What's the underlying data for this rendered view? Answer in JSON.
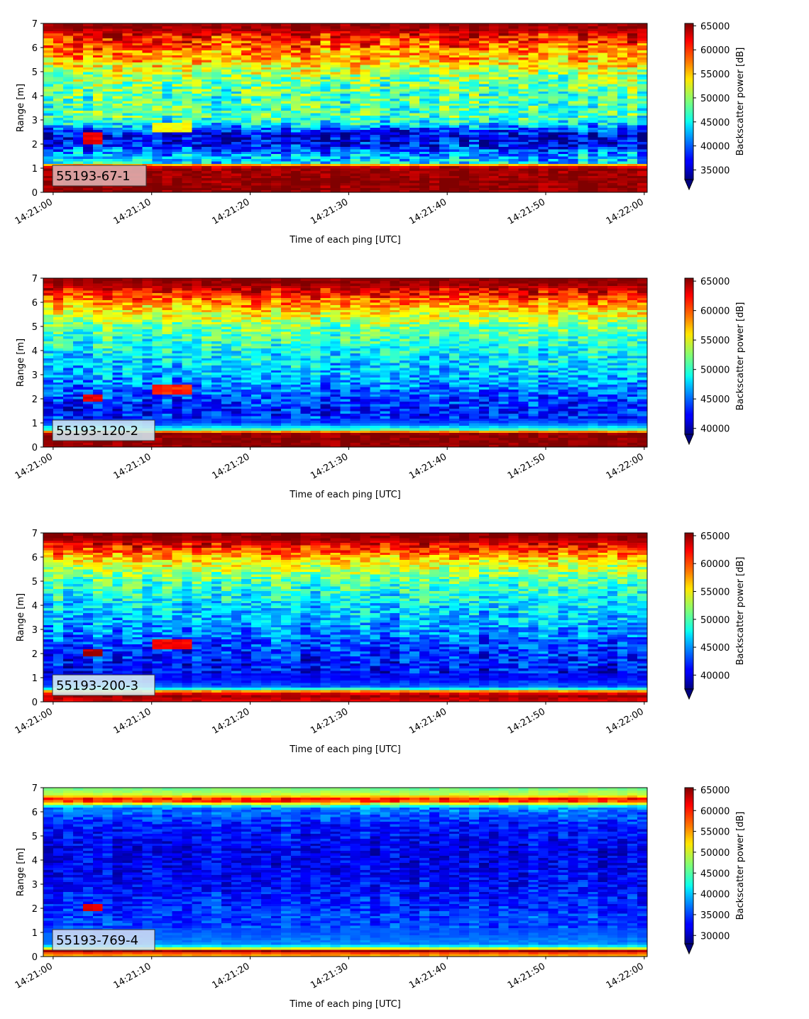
{
  "chart_data": [
    {
      "type": "heatmap",
      "label": "55193-67-1",
      "xlabel": "Time of each ping [UTC]",
      "ylabel": "Range [m]",
      "ylim": [
        0,
        7
      ],
      "y_ticks": [
        "0",
        "1",
        "2",
        "3",
        "4",
        "5",
        "6",
        "7"
      ],
      "x_ticks": [
        "14:21:00",
        "14:21:10",
        "14:21:20",
        "14:21:30",
        "14:21:40",
        "14:21:50",
        "14:22:00"
      ],
      "x_range_s": [
        -1,
        60.3
      ],
      "n_pings": 61,
      "colormap": "jet",
      "colorbar_label": "Backscatter power [dB]",
      "clim": [
        33000,
        65500
      ],
      "colorbar_ticks": [
        "35000",
        "40000",
        "45000",
        "50000",
        "55000",
        "60000",
        "65000"
      ],
      "colorbar_tick_values": [
        35000,
        40000,
        45000,
        50000,
        55000,
        60000,
        65000
      ],
      "label_box_color": "#e2b4b4",
      "profile": [
        [
          0.1,
          65000
        ],
        [
          0.25,
          65000
        ],
        [
          1.0,
          64500
        ],
        [
          1.1,
          62000
        ],
        [
          1.25,
          44000
        ],
        [
          1.6,
          42000
        ],
        [
          2.0,
          37000
        ],
        [
          2.3,
          35500
        ],
        [
          2.6,
          39000
        ],
        [
          3.0,
          47000
        ],
        [
          4.0,
          47500
        ],
        [
          4.8,
          49500
        ],
        [
          5.5,
          55000
        ],
        [
          6.0,
          58000
        ],
        [
          6.5,
          61000
        ],
        [
          6.8,
          64500
        ],
        [
          7.0,
          65000
        ]
      ],
      "noise": 4500,
      "features": [
        [
          4,
          5,
          2.0,
          2.5,
          62000
        ],
        [
          11,
          14,
          2.5,
          2.9,
          53000
        ]
      ],
      "seed": 11
    },
    {
      "type": "heatmap",
      "label": "55193-120-2",
      "xlabel": "Time of each ping [UTC]",
      "ylabel": "Range [m]",
      "ylim": [
        0,
        7
      ],
      "y_ticks": [
        "0",
        "1",
        "2",
        "3",
        "4",
        "5",
        "6",
        "7"
      ],
      "x_ticks": [
        "14:21:00",
        "14:21:10",
        "14:21:20",
        "14:21:30",
        "14:21:40",
        "14:21:50",
        "14:22:00"
      ],
      "x_range_s": [
        -1,
        60.3
      ],
      "n_pings": 61,
      "colormap": "jet",
      "colorbar_label": "Backscatter power [dB]",
      "clim": [
        39000,
        65500
      ],
      "colorbar_ticks": [
        "40000",
        "45000",
        "50000",
        "55000",
        "60000",
        "65000"
      ],
      "colorbar_tick_values": [
        40000,
        45000,
        50000,
        55000,
        60000,
        65000
      ],
      "label_box_color": "#cfe9f2",
      "profile": [
        [
          0.1,
          65000
        ],
        [
          0.6,
          65000
        ],
        [
          0.7,
          52000
        ],
        [
          1.0,
          44000
        ],
        [
          1.5,
          43000
        ],
        [
          2.0,
          44000
        ],
        [
          3.0,
          47000
        ],
        [
          4.0,
          49000
        ],
        [
          5.0,
          52000
        ],
        [
          5.8,
          57000
        ],
        [
          6.4,
          62000
        ],
        [
          6.8,
          65000
        ],
        [
          7.0,
          65000
        ]
      ],
      "noise": 3000,
      "features": [
        [
          4,
          5,
          1.9,
          2.2,
          63000
        ],
        [
          11,
          14,
          2.2,
          2.6,
          61000
        ]
      ],
      "seed": 23
    },
    {
      "type": "heatmap",
      "label": "55193-200-3",
      "xlabel": "Time of each ping [UTC]",
      "ylabel": "Range [m]",
      "ylim": [
        0,
        7
      ],
      "y_ticks": [
        "0",
        "1",
        "2",
        "3",
        "4",
        "5",
        "6",
        "7"
      ],
      "x_ticks": [
        "14:21:00",
        "14:21:10",
        "14:21:20",
        "14:21:30",
        "14:21:40",
        "14:21:50",
        "14:22:00"
      ],
      "x_range_s": [
        -1,
        60.3
      ],
      "n_pings": 61,
      "colormap": "jet",
      "colorbar_label": "Backscatter power [dB]",
      "clim": [
        37500,
        65500
      ],
      "colorbar_ticks": [
        "40000",
        "45000",
        "50000",
        "55000",
        "60000",
        "65000"
      ],
      "colorbar_tick_values": [
        40000,
        45000,
        50000,
        55000,
        60000,
        65000
      ],
      "label_box_color": "#d8f2f4",
      "profile": [
        [
          0.1,
          63000
        ],
        [
          0.3,
          65000
        ],
        [
          0.45,
          58000
        ],
        [
          0.6,
          44000
        ],
        [
          1.0,
          41000
        ],
        [
          2.0,
          42000
        ],
        [
          3.0,
          45000
        ],
        [
          4.0,
          47000
        ],
        [
          5.0,
          50000
        ],
        [
          5.8,
          55000
        ],
        [
          6.4,
          61000
        ],
        [
          6.8,
          65000
        ],
        [
          7.0,
          65000
        ]
      ],
      "noise": 3200,
      "features": [
        [
          4,
          5,
          1.9,
          2.2,
          64000
        ],
        [
          11,
          14,
          2.2,
          2.6,
          62000
        ]
      ],
      "seed": 37
    },
    {
      "type": "heatmap",
      "label": "55193-769-4",
      "xlabel": "Time of each ping [UTC]",
      "ylabel": "Range [m]",
      "ylim": [
        0,
        7
      ],
      "y_ticks": [
        "0",
        "1",
        "2",
        "3",
        "4",
        "5",
        "6",
        "7"
      ],
      "x_ticks": [
        "14:21:00",
        "14:21:10",
        "14:21:20",
        "14:21:30",
        "14:21:40",
        "14:21:50",
        "14:22:00"
      ],
      "x_range_s": [
        -1,
        60.3
      ],
      "n_pings": 61,
      "colormap": "jet",
      "colorbar_label": "Backscatter power [dB]",
      "clim": [
        28000,
        65500
      ],
      "colorbar_ticks": [
        "30000",
        "35000",
        "40000",
        "45000",
        "50000",
        "55000",
        "60000",
        "65000"
      ],
      "colorbar_tick_values": [
        30000,
        35000,
        40000,
        45000,
        50000,
        55000,
        60000,
        65000
      ],
      "label_box_color": "#d2ddf4",
      "profile": [
        [
          0.1,
          55000
        ],
        [
          0.25,
          64000
        ],
        [
          0.35,
          50000
        ],
        [
          0.5,
          38000
        ],
        [
          1.0,
          36000
        ],
        [
          3.0,
          33000
        ],
        [
          4.5,
          32000
        ],
        [
          5.5,
          34000
        ],
        [
          6.2,
          38000
        ],
        [
          6.5,
          63000
        ],
        [
          6.7,
          50000
        ],
        [
          7.0,
          46000
        ]
      ],
      "noise": 2800,
      "features": [
        [
          4,
          5,
          1.95,
          2.15,
          62000
        ]
      ],
      "seed": 53
    }
  ]
}
